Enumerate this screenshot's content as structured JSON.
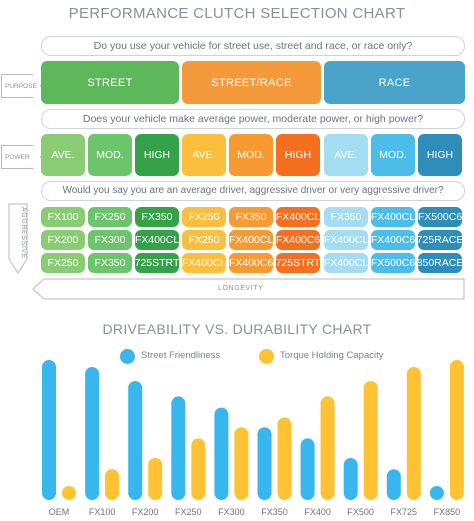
{
  "colors": {
    "street": "#5db85c",
    "street_light": "#6cc46b",
    "street_race": "#f59a3b",
    "street_race_light": "#f7b14b",
    "race": "#4aa3c8",
    "race_light": "#5fbde6",
    "power_ave_s": "#8acc74",
    "power_mod_s": "#6cc46b",
    "power_high_s": "#35a24a",
    "power_ave_sr": "#fbbf3d",
    "power_mod_sr": "#f79a32",
    "power_high_sr": "#f2701f",
    "power_ave_r": "#a4dcf2",
    "power_mod_r": "#4cbde9",
    "power_high_r": "#2f8db9",
    "bar_blue": "#38b6ee",
    "bar_yellow": "#fec233"
  },
  "selection_chart": {
    "title": "PERFORMANCE CLUTCH SELECTION CHART",
    "q_usage": "Do you use your vehicle for street use, street and race, or race only?",
    "q_power": "Does your vehicle make average power, moderate power, or high power?",
    "q_driver": "Would you say you are an average driver, aggressive driver or very aggressive driver?",
    "purpose_label": "PURPOSE",
    "power_label": "POWER",
    "aggressive_label": "AGGRESSIVE",
    "longevity_label": "LONGEVITY",
    "usage": [
      "STREET",
      "STREET/RACE",
      "RACE"
    ],
    "power_levels": [
      "AVE.",
      "MOD.",
      "HIGH",
      "AVE.",
      "MOD.",
      "HIGH",
      "AVE.",
      "MOD.",
      "HIGH"
    ],
    "clutch_rows": [
      [
        "FX100",
        "FX250",
        "FX350",
        "FX250",
        "FX350",
        "FX400CL",
        "FX350",
        "FX400CL",
        "FX500C6"
      ],
      [
        "FX200",
        "FX300",
        "FX400CL",
        "FX250",
        "FX400CL",
        "FX400C6",
        "FX400CL",
        "FX400C6",
        "725RACE"
      ],
      [
        "FX250",
        "FX350",
        "725STRT",
        "FX400CL",
        "FX400C6",
        "725STRT",
        "FX400CL",
        "FX500C6",
        "850RACE"
      ]
    ]
  },
  "chart_data": {
    "type": "bar",
    "title": "DRIVEABILITY VS. DURABILITY CHART",
    "categories": [
      "OEM",
      "FX100",
      "FX200",
      "FX250",
      "FX300",
      "FX350",
      "FX400",
      "FX500",
      "FX725",
      "FX850"
    ],
    "series": [
      {
        "name": "Street Friendliness",
        "color": "#38b6ee",
        "values": [
          100,
          95,
          85,
          74,
          66,
          52,
          44,
          30,
          22,
          10
        ]
      },
      {
        "name": "Torque Holding Capacity",
        "color": "#fec233",
        "values": [
          10,
          22,
          30,
          44,
          52,
          59,
          74,
          85,
          95,
          100
        ]
      }
    ],
    "ylim": [
      0,
      100
    ],
    "legend": "top-center",
    "grid": false
  }
}
